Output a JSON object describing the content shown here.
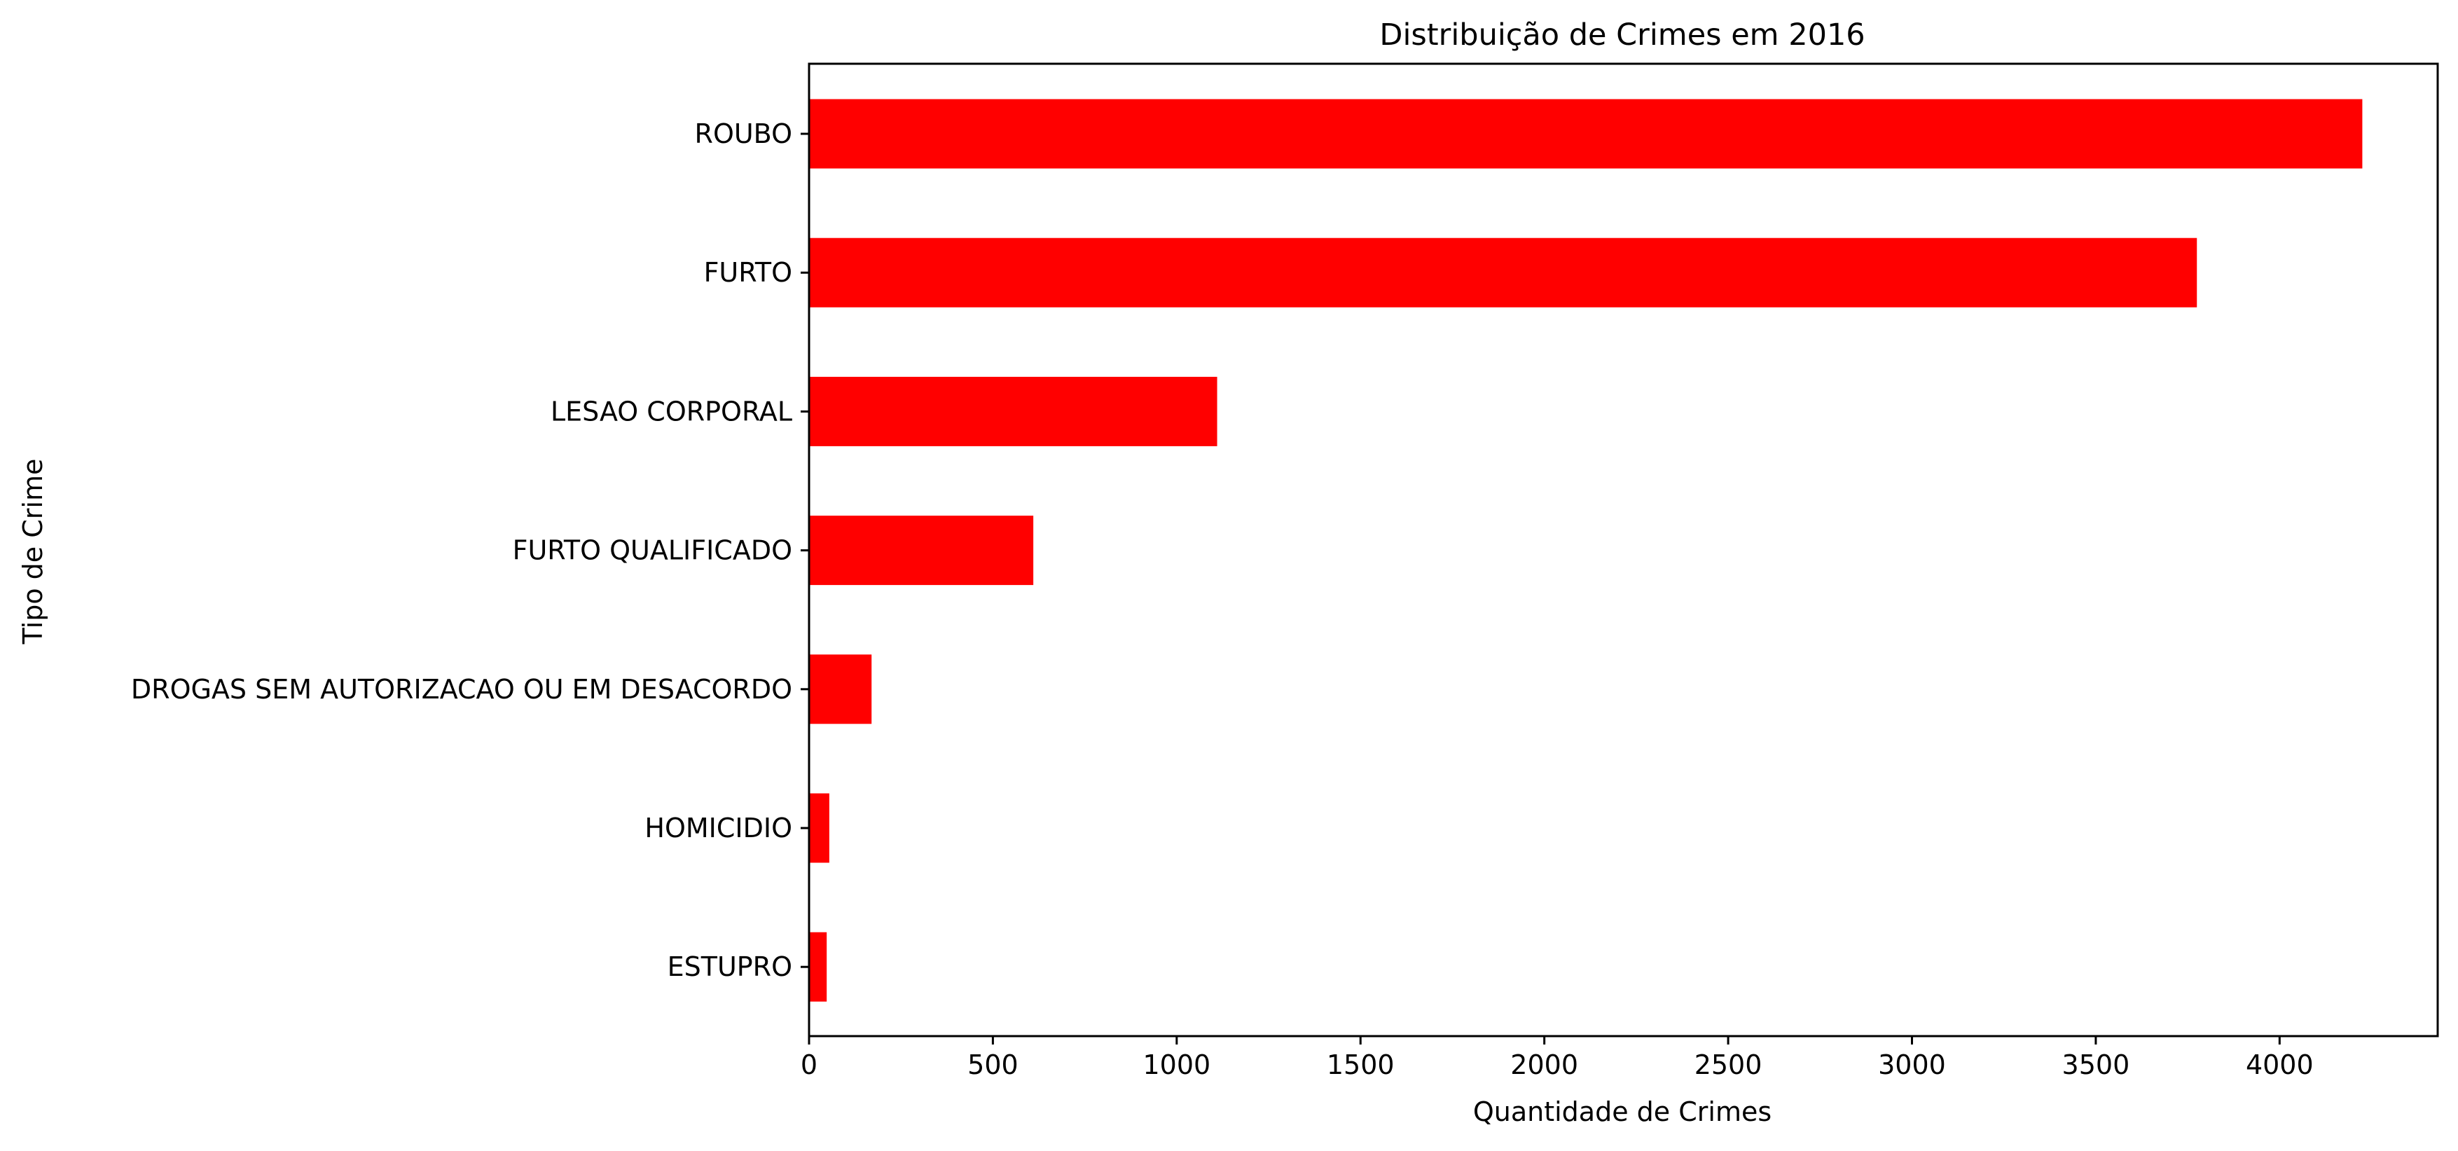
{
  "chart_data": {
    "type": "bar",
    "orientation": "horizontal",
    "title": "Distribuição de Crimes em 2016",
    "xlabel": "Quantidade de Crimes",
    "ylabel": "Tipo de Crime",
    "categories": [
      "ROUBO",
      "FURTO",
      "LESAO CORPORAL",
      "FURTO QUALIFICADO",
      "DROGAS SEM AUTORIZACAO OU EM DESACORDO",
      "HOMICIDIO",
      "ESTUPRO"
    ],
    "values": [
      4225,
      3775,
      1110,
      610,
      170,
      55,
      48
    ],
    "xlim": [
      0,
      4430
    ],
    "xticks": [
      0,
      500,
      1000,
      1500,
      2000,
      2500,
      3000,
      3500,
      4000
    ],
    "grid": false,
    "legend": "none",
    "bar_color": "#ff0000"
  }
}
